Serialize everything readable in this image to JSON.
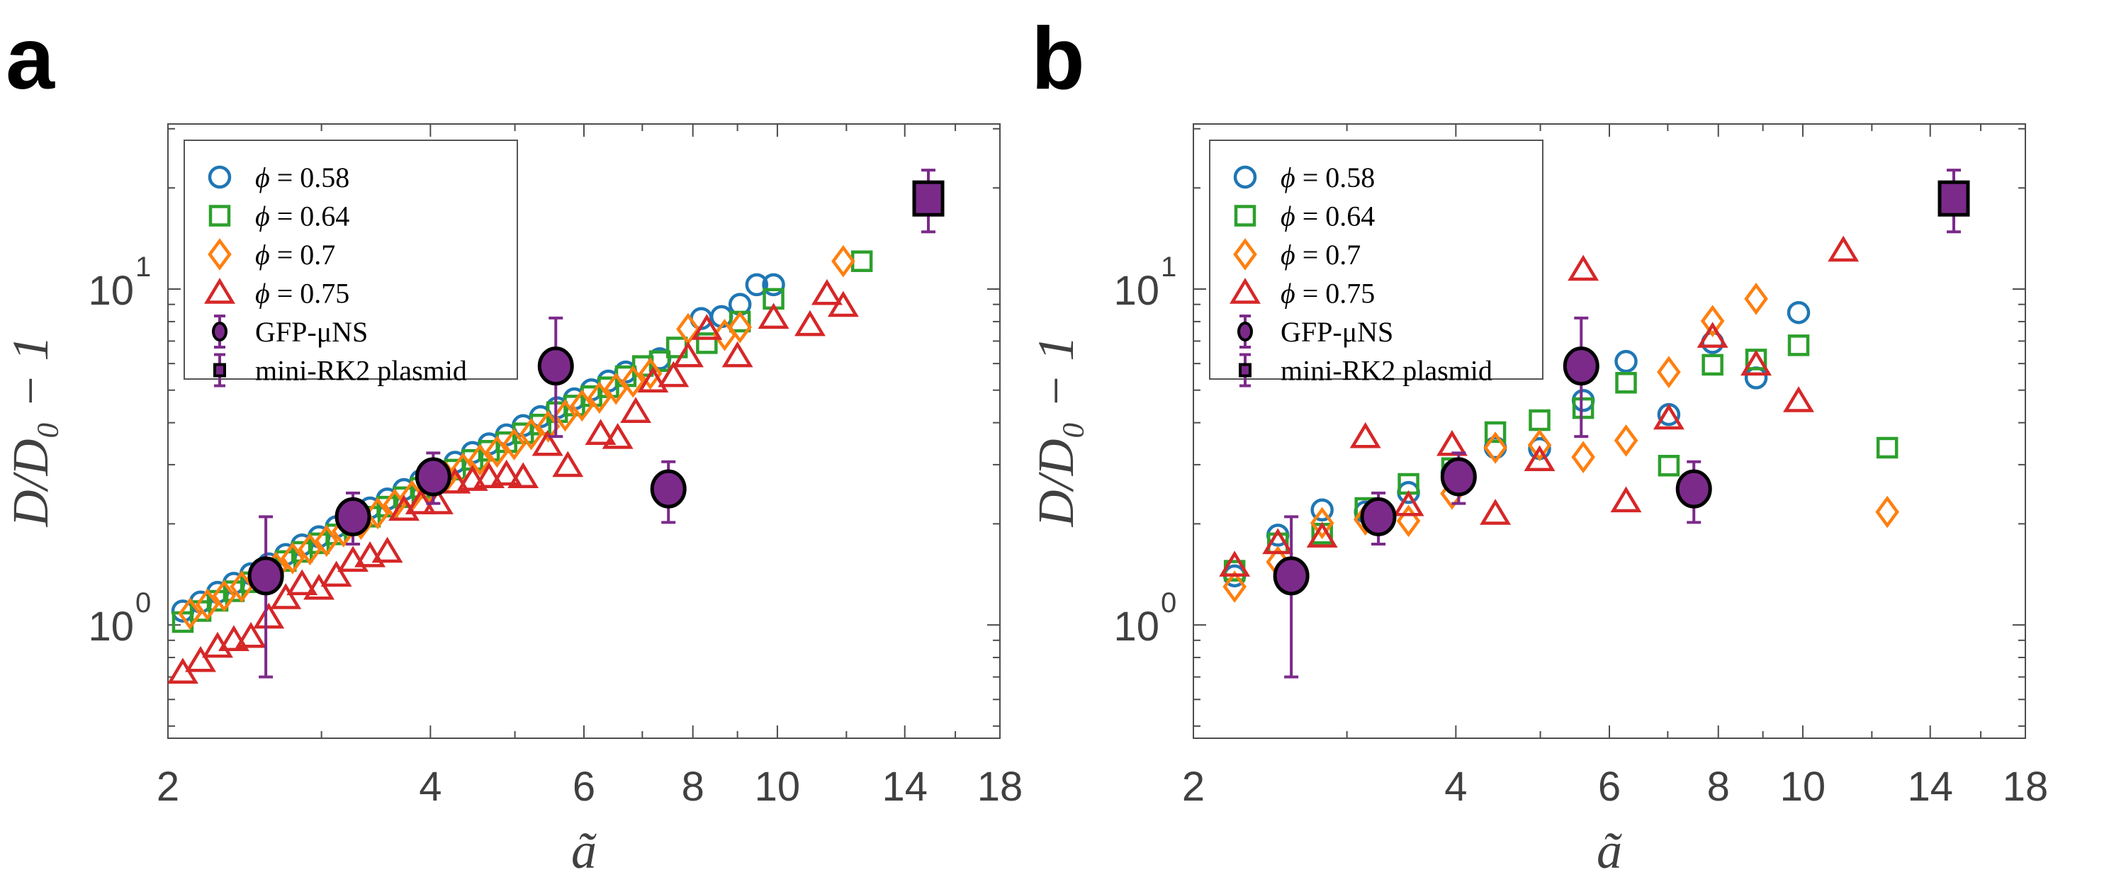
{
  "chart_data": [
    {
      "panel_label": "a",
      "type": "scatter",
      "xscale": "log",
      "yscale": "log",
      "xlabel": "ã",
      "ylabel": "D/D₀ − 1",
      "xlim": [
        2,
        18
      ],
      "ylim": [
        0.46,
        31
      ],
      "xticks": [
        2,
        4,
        6,
        8,
        10,
        14,
        18
      ],
      "yticks": [
        {
          "base": "10",
          "exp": "0",
          "value": 1
        },
        {
          "base": "10",
          "exp": "1",
          "value": 10
        }
      ],
      "legend_position": "top-left",
      "series": [
        {
          "name": "φ = 0.58",
          "marker": "circle",
          "color": "#1f77b4",
          "x": [
            2.08,
            2.18,
            2.28,
            2.38,
            2.49,
            2.61,
            2.73,
            2.85,
            2.98,
            3.12,
            3.26,
            3.41,
            3.57,
            3.73,
            3.9,
            4.08,
            4.27,
            4.47,
            4.67,
            4.89,
            5.11,
            5.35,
            5.59,
            5.85,
            6.12,
            6.4,
            6.7,
            7.33,
            8.18,
            8.63,
            9.06,
            9.47,
            9.9
          ],
          "y": [
            1.1,
            1.17,
            1.25,
            1.33,
            1.42,
            1.52,
            1.62,
            1.73,
            1.83,
            1.96,
            2.09,
            2.23,
            2.37,
            2.53,
            2.69,
            2.87,
            3.05,
            3.26,
            3.46,
            3.68,
            3.92,
            4.17,
            4.43,
            4.71,
            5.01,
            5.32,
            5.66,
            6.2,
            8.17,
            8.28,
            9.0,
            10.3,
            10.3
          ]
        },
        {
          "name": "φ = 0.64",
          "marker": "square",
          "color": "#2ca02c",
          "x": [
            2.08,
            2.18,
            2.28,
            2.38,
            2.49,
            2.61,
            2.73,
            2.85,
            2.98,
            3.12,
            3.26,
            3.41,
            3.57,
            3.73,
            3.9,
            4.08,
            4.27,
            4.47,
            4.67,
            4.89,
            5.11,
            5.35,
            5.59,
            5.85,
            6.12,
            6.4,
            6.7,
            7.01,
            7.33,
            7.67,
            8.3,
            9.06,
            9.9,
            12.5
          ],
          "y": [
            1.02,
            1.1,
            1.18,
            1.26,
            1.34,
            1.45,
            1.55,
            1.65,
            1.75,
            1.86,
            1.98,
            2.1,
            2.25,
            2.4,
            2.56,
            2.72,
            2.9,
            3.1,
            3.3,
            3.5,
            3.72,
            3.95,
            4.3,
            4.5,
            4.8,
            5.1,
            5.5,
            5.9,
            6.1,
            6.7,
            6.9,
            8.0,
            9.35,
            12.1
          ]
        },
        {
          "name": "φ = 0.7",
          "marker": "diamond",
          "color": "#ff7f0e",
          "x": [
            2.12,
            2.22,
            2.32,
            2.43,
            2.54,
            2.66,
            2.78,
            2.91,
            3.04,
            3.18,
            3.33,
            3.48,
            3.64,
            3.81,
            3.98,
            4.17,
            4.36,
            4.56,
            4.77,
            4.99,
            5.22,
            5.46,
            5.71,
            5.97,
            6.25,
            6.53,
            6.83,
            7.15,
            7.9,
            8.7,
            9.06,
            11.9
          ],
          "y": [
            1.08,
            1.15,
            1.22,
            1.3,
            1.38,
            1.48,
            1.58,
            1.68,
            1.78,
            1.9,
            2.0,
            2.15,
            2.28,
            2.42,
            2.55,
            2.75,
            2.92,
            3.1,
            3.28,
            3.45,
            3.7,
            3.9,
            4.2,
            4.5,
            4.75,
            5.05,
            5.3,
            5.6,
            7.6,
            7.3,
            7.7,
            12.1
          ]
        },
        {
          "name": "φ = 0.75",
          "marker": "triangle",
          "color": "#d62728",
          "x": [
            2.08,
            2.18,
            2.28,
            2.38,
            2.49,
            2.61,
            2.73,
            2.85,
            2.98,
            3.12,
            3.26,
            3.41,
            3.57,
            3.73,
            3.9,
            4.08,
            4.27,
            4.47,
            4.67,
            4.89,
            5.11,
            5.45,
            5.75,
            6.27,
            6.56,
            6.88,
            7.2,
            7.6,
            7.9,
            8.3,
            9.0,
            9.9,
            10.9,
            11.4,
            11.9
          ],
          "y": [
            0.72,
            0.78,
            0.86,
            0.9,
            0.92,
            1.05,
            1.2,
            1.32,
            1.28,
            1.4,
            1.55,
            1.6,
            1.65,
            2.2,
            2.3,
            2.3,
            2.65,
            2.7,
            2.75,
            2.8,
            2.75,
            3.43,
            2.97,
            3.7,
            3.6,
            4.3,
            5.3,
            5.5,
            6.3,
            7.6,
            6.3,
            8.2,
            7.8,
            9.65,
            8.9
          ]
        },
        {
          "name": "GFP-μNS",
          "marker": "circle-filled",
          "color": "#7b2a8a",
          "x": [
            2.59,
            3.26,
            4.03,
            5.57,
            7.5
          ],
          "y": [
            1.4,
            2.1,
            2.76,
            5.9,
            2.54
          ],
          "err_low": [
            0.7,
            1.74,
            2.3,
            3.64,
            2.02
          ],
          "err_high": [
            2.1,
            2.47,
            3.25,
            8.2,
            3.06
          ]
        },
        {
          "name": "mini-RK2 plasmid",
          "marker": "square-filled",
          "color": "#7b2a8a",
          "x": [
            14.9
          ],
          "y": [
            18.6
          ],
          "err_low": [
            14.8
          ],
          "err_high": [
            22.6
          ]
        }
      ]
    },
    {
      "panel_label": "b",
      "type": "scatter",
      "xscale": "log",
      "yscale": "log",
      "xlabel": "ã",
      "ylabel": "D/D₀ − 1",
      "xlim": [
        2,
        18
      ],
      "ylim": [
        0.46,
        31
      ],
      "xticks": [
        2,
        4,
        6,
        8,
        10,
        14,
        18
      ],
      "yticks": [
        {
          "base": "10",
          "exp": "0",
          "value": 1
        },
        {
          "base": "10",
          "exp": "1",
          "value": 10
        }
      ],
      "legend_position": "top-left",
      "series": [
        {
          "name": "φ = 0.58",
          "marker": "circle",
          "color": "#1f77b4",
          "x": [
            2.23,
            2.5,
            2.81,
            3.15,
            3.53,
            3.96,
            4.44,
            4.99,
            5.6,
            6.27,
            7.02,
            7.88,
            8.84,
            9.89
          ],
          "y": [
            1.4,
            1.85,
            2.2,
            2.17,
            2.48,
            2.84,
            3.37,
            3.35,
            4.66,
            6.09,
            4.23,
            6.93,
            5.44,
            8.51
          ]
        },
        {
          "name": "φ = 0.64",
          "marker": "square",
          "color": "#2ca02c",
          "x": [
            2.23,
            2.5,
            2.81,
            3.15,
            3.53,
            3.96,
            4.44,
            4.99,
            5.6,
            6.27,
            7.02,
            7.88,
            8.84,
            9.89,
            12.5
          ],
          "y": [
            1.45,
            1.75,
            1.87,
            2.23,
            2.63,
            2.93,
            3.75,
            4.07,
            4.42,
            5.26,
            2.98,
            5.95,
            6.17,
            6.8,
            3.37
          ]
        },
        {
          "name": "φ = 0.7",
          "marker": "diamond",
          "color": "#ff7f0e",
          "x": [
            2.23,
            2.5,
            2.81,
            3.15,
            3.53,
            3.96,
            4.44,
            4.99,
            5.6,
            6.27,
            7.02,
            7.88,
            8.84,
            12.5
          ],
          "y": [
            1.3,
            1.54,
            2.01,
            2.06,
            2.04,
            2.46,
            3.37,
            3.43,
            3.16,
            3.54,
            5.66,
            8.03,
            9.35,
            2.17
          ]
        },
        {
          "name": "φ = 0.75",
          "marker": "triangle",
          "color": "#d62728",
          "x": [
            2.23,
            2.5,
            2.81,
            3.15,
            3.53,
            3.96,
            4.44,
            4.99,
            5.6,
            6.27,
            7.02,
            7.88,
            8.84,
            9.89,
            11.13
          ],
          "y": [
            1.5,
            1.75,
            1.83,
            3.62,
            2.27,
            3.43,
            2.14,
            3.09,
            11.4,
            2.33,
            4.11,
            7.2,
            5.95,
            4.63,
            13.0
          ]
        },
        {
          "name": "GFP-μNS",
          "marker": "circle-filled",
          "color": "#7b2a8a",
          "x": [
            2.59,
            3.26,
            4.03,
            5.57,
            7.5
          ],
          "y": [
            1.4,
            2.1,
            2.76,
            5.9,
            2.54
          ],
          "err_low": [
            0.7,
            1.74,
            2.3,
            3.64,
            2.02
          ],
          "err_high": [
            2.1,
            2.47,
            3.25,
            8.2,
            3.06
          ]
        },
        {
          "name": "mini-RK2 plasmid",
          "marker": "square-filled",
          "color": "#7b2a8a",
          "x": [
            14.9
          ],
          "y": [
            18.6
          ],
          "err_low": [
            14.8
          ],
          "err_high": [
            22.6
          ]
        }
      ]
    }
  ],
  "legend": {
    "entries": [
      {
        "phi_symbol": "ϕ",
        "text": "= 0.58"
      },
      {
        "phi_symbol": "ϕ",
        "text": "= 0.64"
      },
      {
        "phi_symbol": "ϕ",
        "text": "= 0.7"
      },
      {
        "phi_symbol": "ϕ",
        "text": "= 0.75"
      },
      {
        "text": "GFP-μNS"
      },
      {
        "text": "mini-RK2 plasmid"
      }
    ]
  }
}
